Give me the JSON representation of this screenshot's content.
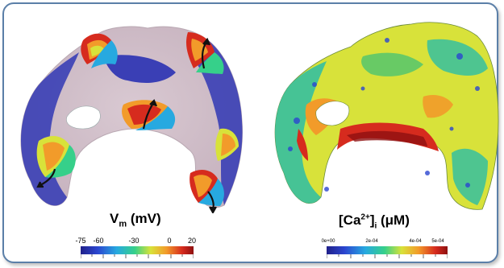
{
  "panels": {
    "left": {
      "label_main": "V",
      "label_sub": "m",
      "label_unit": " (mV)",
      "colorbar": {
        "ticks": [
          "-75",
          "-60",
          "-30",
          "0",
          "20"
        ],
        "colors": [
          "#20208a",
          "#2b46d0",
          "#27a9e0",
          "#36d08a",
          "#d8e23a",
          "#f29b2a",
          "#d62b1e",
          "#8e1010"
        ]
      }
    },
    "right": {
      "label_open": "[Ca",
      "label_sup": "2+",
      "label_close": "]",
      "label_sub": "i",
      "label_unit": " (μM)",
      "colorbar": {
        "ticks": [
          "0e+00",
          "2e-04",
          "4e-04",
          "5e-04"
        ],
        "colors": [
          "#20208a",
          "#2b46d0",
          "#27a9e0",
          "#36d08a",
          "#d8e23a",
          "#f29b2a",
          "#d62b1e",
          "#8e1010"
        ]
      }
    }
  },
  "colors": {
    "frame": "#5b7fa8",
    "tissue_rest": "#d8c8d0",
    "depolarized_blue": "#3a3fb5"
  }
}
